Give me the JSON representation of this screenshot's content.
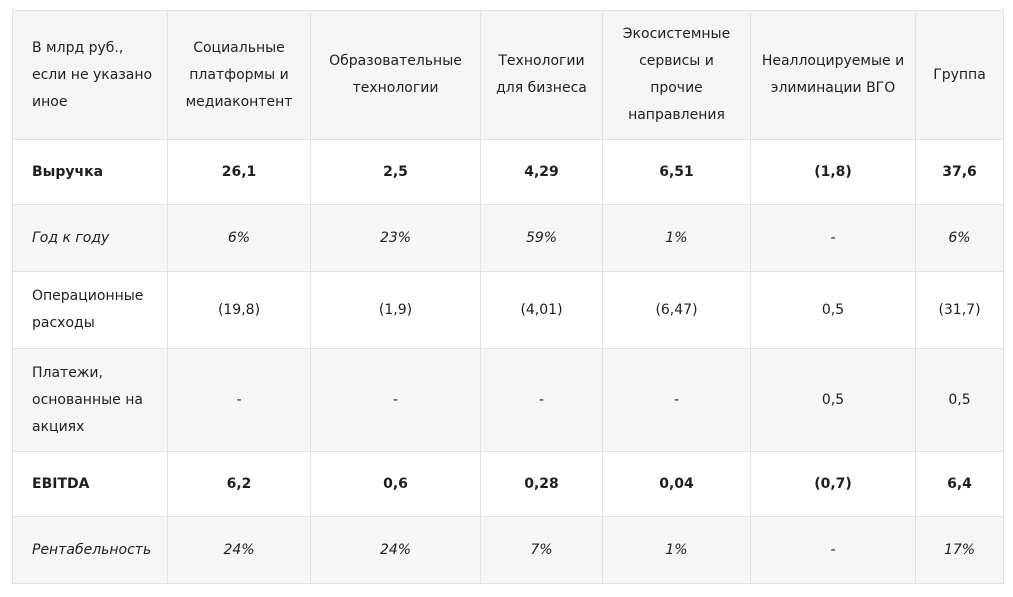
{
  "table": {
    "headers": [
      "В млрд руб., если не указано иное",
      "Социальные платформы и медиаконтент",
      "Образовательные технологии",
      "Технологии для бизнеса",
      "Экосистемные сервисы и прочие направления",
      "Неаллоцируемые и элиминации ВГО",
      "Группа"
    ],
    "rows": [
      {
        "label": "Выручка",
        "values": [
          "26,1",
          "2,5",
          "4,29",
          "6,51",
          "(1,8)",
          "37,6"
        ]
      },
      {
        "label": "Год к году",
        "values": [
          "6%",
          "23%",
          "59%",
          "1%",
          "-",
          "6%"
        ]
      },
      {
        "label": "Операционные расходы",
        "values": [
          "(19,8)",
          "(1,9)",
          "(4,01)",
          "(6,47)",
          "0,5",
          "(31,7)"
        ]
      },
      {
        "label": "Платежи, основанные на акциях",
        "values": [
          "-",
          "-",
          "-",
          "-",
          "0,5",
          "0,5"
        ]
      },
      {
        "label": "EBITDA",
        "values": [
          "6,2",
          "0,6",
          "0,28",
          "0,04",
          "(0,7)",
          "6,4"
        ]
      },
      {
        "label": "Рентабельность",
        "values": [
          "24%",
          "24%",
          "7%",
          "1%",
          "-",
          "17%"
        ]
      }
    ]
  }
}
